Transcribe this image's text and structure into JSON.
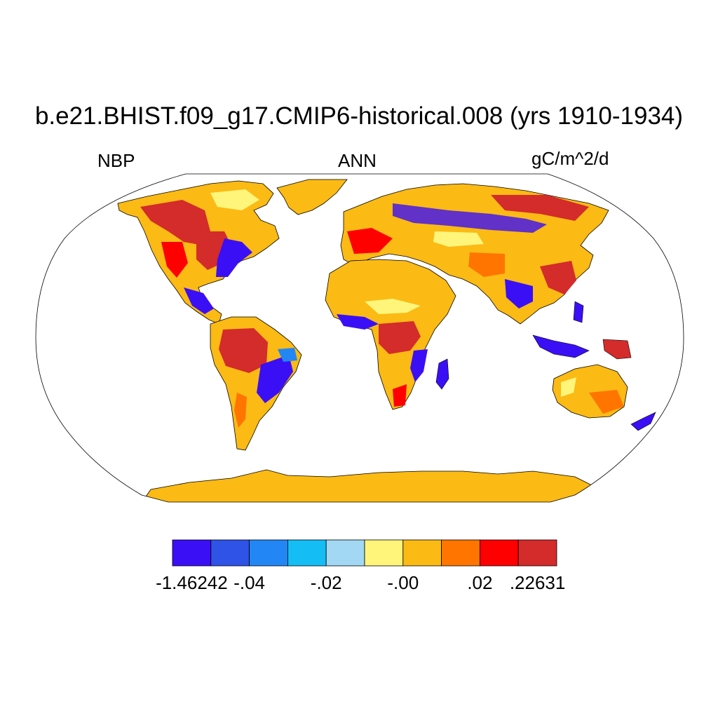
{
  "header": {
    "title": "b.e21.BHIST.f09_g17.CMIP6-historical.008 (yrs 1910-1934)",
    "left_label": "NBP",
    "center_label": "ANN",
    "right_label": "gC/m^2/d"
  },
  "map": {
    "projection": "Robinson",
    "variable": "NBP",
    "season": "ANN"
  },
  "legend": {
    "colors": [
      "#3b0ff5",
      "#2f53e6",
      "#2287f5",
      "#15bdf5",
      "#a2d8f3",
      "#fff57b",
      "#fbba14",
      "#ff7500",
      "#ff0000",
      "#d42b2b"
    ],
    "tick_labels": [
      "-1.46242",
      "-.04",
      "-.02",
      "-.00",
      ".02",
      ".22631"
    ]
  }
}
